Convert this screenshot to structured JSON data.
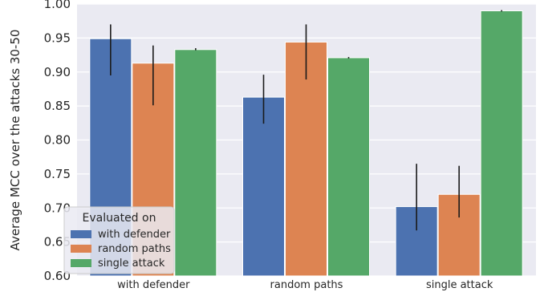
{
  "chart_data": {
    "type": "bar",
    "title": "",
    "xlabel": "",
    "ylabel": "Average MCC over the attacks 30-50",
    "ylim": [
      0.6,
      1.0
    ],
    "yticks": [
      "0.60",
      "0.65",
      "0.70",
      "0.75",
      "0.80",
      "0.85",
      "0.90",
      "0.95",
      "1.00"
    ],
    "categories": [
      "with defender",
      "random paths",
      "single attack"
    ],
    "legend": {
      "title": "Evaluated on",
      "placement": "lower-left"
    },
    "grid": true,
    "series": [
      {
        "name": "with defender",
        "color": "#4c72b0",
        "values": [
          0.949,
          0.863,
          0.702
        ],
        "err_low": [
          0.895,
          0.824,
          0.667
        ],
        "err_high": [
          0.97,
          0.896,
          0.765
        ]
      },
      {
        "name": "random paths",
        "color": "#dd8452",
        "values": [
          0.913,
          0.944,
          0.72
        ],
        "err_low": [
          0.851,
          0.889,
          0.686
        ],
        "err_high": [
          0.939,
          0.97,
          0.762
        ]
      },
      {
        "name": "single attack",
        "color": "#55a868",
        "values": [
          0.933,
          0.921,
          0.99
        ],
        "err_low": [
          0.932,
          0.92,
          0.989
        ],
        "err_high": [
          0.935,
          0.922,
          0.991
        ]
      }
    ],
    "background_color": "#eaeaf2"
  }
}
